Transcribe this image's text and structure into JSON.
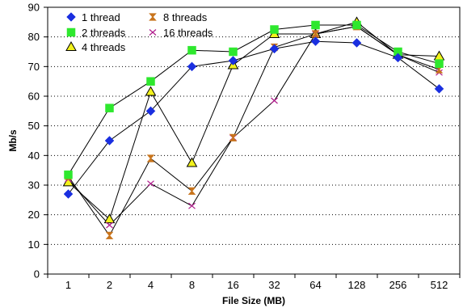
{
  "chart_data": {
    "type": "line",
    "xlabel": "File Size (MB)",
    "ylabel": "Mb/s",
    "categories": [
      "1",
      "2",
      "4",
      "8",
      "16",
      "32",
      "64",
      "128",
      "256",
      "512"
    ],
    "ylim": [
      0,
      90
    ],
    "yticks": [
      0,
      10,
      20,
      30,
      40,
      50,
      60,
      70,
      80,
      90
    ],
    "grid": "horizontal dotted",
    "legend_position": "top-left",
    "series": [
      {
        "name": "1 thread",
        "marker": "diamond",
        "color": "#1a2fe0",
        "values": [
          27,
          45,
          55,
          70,
          72,
          76,
          78.5,
          78,
          73,
          62.5
        ]
      },
      {
        "name": "2 threads",
        "marker": "square",
        "color": "#2ee82e",
        "values": [
          33.5,
          56,
          65,
          75.5,
          75,
          82.5,
          84,
          84,
          75,
          71
        ]
      },
      {
        "name": "4 threads",
        "marker": "triangle",
        "color": "#f2f21c",
        "values": [
          31,
          18.5,
          61.5,
          37.5,
          70.5,
          81,
          81,
          85,
          74,
          73.5
        ]
      },
      {
        "name": "8 threads",
        "marker": "hourglass",
        "color": "#c8741c",
        "values": [
          33,
          13,
          39,
          28,
          46,
          76.5,
          81,
          83.5,
          74,
          69
        ]
      },
      {
        "name": "16 threads",
        "marker": "bowtie",
        "color": "#b01c8c",
        "values": [
          32,
          16.5,
          30.5,
          23,
          46,
          58.5,
          81,
          83.5,
          74,
          68
        ]
      }
    ]
  }
}
